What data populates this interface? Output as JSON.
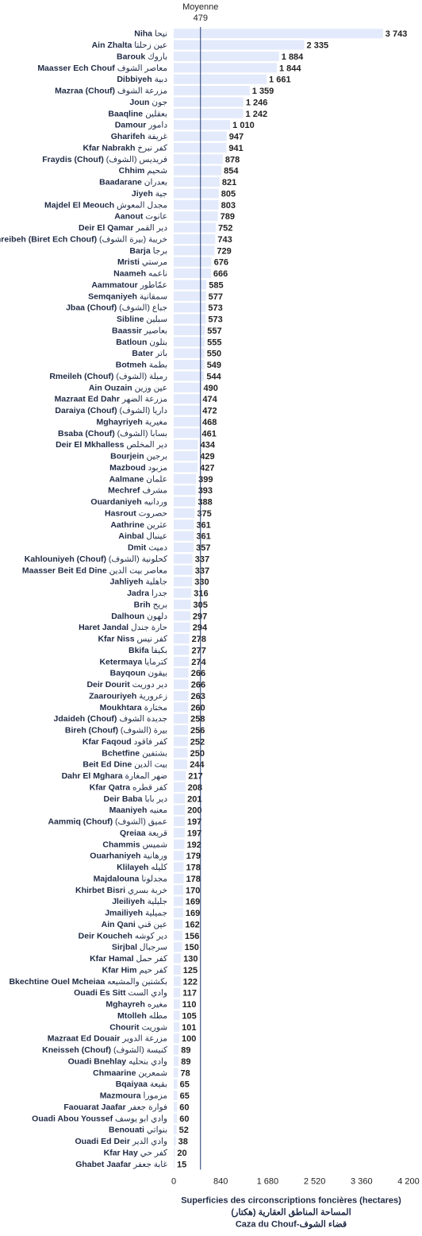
{
  "chart_data": {
    "type": "bar",
    "orientation": "horizontal",
    "bar_color": "#e3eafb",
    "average_line_color": "#1f3a73",
    "average": {
      "label": "Moyenne",
      "value": 479
    },
    "x_ticks": [
      0,
      840,
      1680,
      2520,
      3360,
      4200
    ],
    "x_tick_labels": [
      "0",
      "840",
      "1 680",
      "2 520",
      "3 360",
      "4 200"
    ],
    "xlim": [
      0,
      4200
    ],
    "title_lines": [
      "Superficies des circonscriptions foncières (hectares)",
      "المساحة المناطق العقارية (هكتار)",
      "Caza du Chouf-قضاء الشوف"
    ],
    "categories": [
      {
        "fr": "Niha",
        "ar": "نيحا",
        "value": 3743,
        "value_label": "3 743"
      },
      {
        "fr": "Ain Zhalta",
        "ar": "عين زحلتا",
        "value": 2335,
        "value_label": "2 335"
      },
      {
        "fr": "Barouk",
        "ar": "باروك",
        "value": 1884,
        "value_label": "1 884"
      },
      {
        "fr": "Maasser Ech Chouf",
        "ar": "معاصر الشوف",
        "value": 1844,
        "value_label": "1 844"
      },
      {
        "fr": "Dibbiyeh",
        "ar": "دبية",
        "value": 1661,
        "value_label": "1 661"
      },
      {
        "fr": "Mazraa (Chouf)",
        "ar": "مزرعة الشوف",
        "value": 1359,
        "value_label": "1 359"
      },
      {
        "fr": "Joun",
        "ar": "جون",
        "value": 1246,
        "value_label": "1 246"
      },
      {
        "fr": "Baaqline",
        "ar": "بعقلين",
        "value": 1242,
        "value_label": "1 242"
      },
      {
        "fr": "Damour",
        "ar": "دامور",
        "value": 1010,
        "value_label": "1 010"
      },
      {
        "fr": "Gharifeh",
        "ar": "غريفة",
        "value": 947,
        "value_label": "947"
      },
      {
        "fr": "Kfar Nabrakh",
        "ar": "كفر نبرخ",
        "value": 941,
        "value_label": "941"
      },
      {
        "fr": "Fraydis (Chouf)",
        "ar": "فريديس (الشوف)",
        "value": 878,
        "value_label": "878"
      },
      {
        "fr": "Chhim",
        "ar": "شحيم",
        "value": 854,
        "value_label": "854"
      },
      {
        "fr": "Baadarane",
        "ar": "بعدران",
        "value": 821,
        "value_label": "821"
      },
      {
        "fr": "Jiyeh",
        "ar": "جية",
        "value": 805,
        "value_label": "805"
      },
      {
        "fr": "Majdel El Meouch",
        "ar": "مجدل المعوش",
        "value": 803,
        "value_label": "803"
      },
      {
        "fr": "Aanout",
        "ar": "عانوت",
        "value": 789,
        "value_label": "789"
      },
      {
        "fr": "Deir El Qamar",
        "ar": "دير القمر",
        "value": 752,
        "value_label": "752"
      },
      {
        "fr": "Khreibeh (Biret Ech Chouf)",
        "ar": "خريبة (بيرة الشوف)",
        "value": 743,
        "value_label": "743"
      },
      {
        "fr": "Barja",
        "ar": "برجا",
        "value": 729,
        "value_label": "729"
      },
      {
        "fr": "Mristi",
        "ar": "مرستي",
        "value": 676,
        "value_label": "676"
      },
      {
        "fr": "Naameh",
        "ar": "ناعمه",
        "value": 666,
        "value_label": "666"
      },
      {
        "fr": "Aammatour",
        "ar": "عمّاطور",
        "value": 585,
        "value_label": "585"
      },
      {
        "fr": "Semqaniyeh",
        "ar": "سمقانية",
        "value": 577,
        "value_label": "577"
      },
      {
        "fr": "Jbaa (Chouf)",
        "ar": "جباع (الشوف)",
        "value": 573,
        "value_label": "573"
      },
      {
        "fr": "Sibline",
        "ar": "سبلين",
        "value": 573,
        "value_label": "573"
      },
      {
        "fr": "Baassir",
        "ar": "بعاصير",
        "value": 557,
        "value_label": "557"
      },
      {
        "fr": "Batloun",
        "ar": "بتلون",
        "value": 555,
        "value_label": "555"
      },
      {
        "fr": "Bater",
        "ar": "باتر",
        "value": 550,
        "value_label": "550"
      },
      {
        "fr": "Botmeh",
        "ar": "بطمة",
        "value": 549,
        "value_label": "549"
      },
      {
        "fr": "Rmeileh (Chouf)",
        "ar": "رميلة (الشوف)",
        "value": 544,
        "value_label": "544"
      },
      {
        "fr": "Ain Ouzain",
        "ar": "عين وزين",
        "value": 490,
        "value_label": "490"
      },
      {
        "fr": "Mazraat Ed Dahr",
        "ar": "مزرعة الضهر",
        "value": 474,
        "value_label": "474"
      },
      {
        "fr": "Daraiya (Chouf)",
        "ar": "داريا (الشوف)",
        "value": 472,
        "value_label": "472"
      },
      {
        "fr": "Mghayriyeh",
        "ar": "مغيرية",
        "value": 468,
        "value_label": "468"
      },
      {
        "fr": "Bsaba (Chouf)",
        "ar": "بسابا (الشوف)",
        "value": 461,
        "value_label": "461"
      },
      {
        "fr": "Deir El Mkhalless",
        "ar": "دير المخلص",
        "value": 434,
        "value_label": "434"
      },
      {
        "fr": "Bourjein",
        "ar": "برجين",
        "value": 429,
        "value_label": "429"
      },
      {
        "fr": "Mazboud",
        "ar": "مزبود",
        "value": 427,
        "value_label": "427"
      },
      {
        "fr": "Aalmane",
        "ar": "علمان",
        "value": 399,
        "value_label": "399"
      },
      {
        "fr": "Mechref",
        "ar": "مشرف",
        "value": 393,
        "value_label": "393"
      },
      {
        "fr": "Ouardaniyeh",
        "ar": "وردانيه",
        "value": 388,
        "value_label": "388"
      },
      {
        "fr": "Hasrout",
        "ar": "حصروت",
        "value": 375,
        "value_label": "375"
      },
      {
        "fr": "Aathrine",
        "ar": "عثرين",
        "value": 361,
        "value_label": "361"
      },
      {
        "fr": "Ainbal",
        "ar": "عينبال",
        "value": 361,
        "value_label": "361"
      },
      {
        "fr": "Dmit",
        "ar": "دميت",
        "value": 357,
        "value_label": "357"
      },
      {
        "fr": "Kahlouniyeh (Chouf)",
        "ar": "كحلونية (الشوف)",
        "value": 337,
        "value_label": "337"
      },
      {
        "fr": "Maasser Beit Ed Dine",
        "ar": "معاصر بيت الدين",
        "value": 337,
        "value_label": "337"
      },
      {
        "fr": "Jahliyeh",
        "ar": "جاهلية",
        "value": 330,
        "value_label": "330"
      },
      {
        "fr": "Jadra",
        "ar": "جدرا",
        "value": 316,
        "value_label": "316"
      },
      {
        "fr": "Brih",
        "ar": "بريح",
        "value": 305,
        "value_label": "305"
      },
      {
        "fr": "Dalhoun",
        "ar": "دلهون",
        "value": 297,
        "value_label": "297"
      },
      {
        "fr": "Haret Jandal",
        "ar": "حارة جندل",
        "value": 294,
        "value_label": "294"
      },
      {
        "fr": "Kfar Niss",
        "ar": "كفر نيس",
        "value": 278,
        "value_label": "278"
      },
      {
        "fr": "Bkifa",
        "ar": "بكيفا",
        "value": 277,
        "value_label": "277"
      },
      {
        "fr": "Ketermaya",
        "ar": "كترمايا",
        "value": 274,
        "value_label": "274"
      },
      {
        "fr": "Bayqoun",
        "ar": "بيقون",
        "value": 266,
        "value_label": "266"
      },
      {
        "fr": "Deir Dourit",
        "ar": "دير دوريت",
        "value": 266,
        "value_label": "266"
      },
      {
        "fr": "Zaarouriyeh",
        "ar": "زعرورية",
        "value": 263,
        "value_label": "263"
      },
      {
        "fr": "Moukhtara",
        "ar": "مختارة",
        "value": 260,
        "value_label": "260"
      },
      {
        "fr": "Jdaideh (Chouf)",
        "ar": "جديدة الشوف",
        "value": 258,
        "value_label": "258"
      },
      {
        "fr": "Bireh (Chouf)",
        "ar": "بيرة (الشوف)",
        "value": 256,
        "value_label": "256"
      },
      {
        "fr": "Kfar Faqoud",
        "ar": "كفر فاقود",
        "value": 252,
        "value_label": "252"
      },
      {
        "fr": "Bchetfine",
        "ar": "بشتفين",
        "value": 250,
        "value_label": "250"
      },
      {
        "fr": "Beit Ed Dine",
        "ar": "بيت الدين",
        "value": 244,
        "value_label": "244"
      },
      {
        "fr": "Dahr El Mghara",
        "ar": "ضهر المغارة",
        "value": 217,
        "value_label": "217"
      },
      {
        "fr": "Kfar Qatra",
        "ar": "كفر قطره",
        "value": 208,
        "value_label": "208"
      },
      {
        "fr": "Deir Baba",
        "ar": "دير بابا",
        "value": 201,
        "value_label": "201"
      },
      {
        "fr": "Maaniyeh",
        "ar": "معنيه",
        "value": 200,
        "value_label": "200"
      },
      {
        "fr": "Aammiq (Chouf)",
        "ar": "عميق (الشوف)",
        "value": 197,
        "value_label": "197"
      },
      {
        "fr": "Qreiaa",
        "ar": "قريعة",
        "value": 197,
        "value_label": "197"
      },
      {
        "fr": "Chammis",
        "ar": "شميس",
        "value": 192,
        "value_label": "192"
      },
      {
        "fr": "Ouarhaniyeh",
        "ar": "ورهانية",
        "value": 179,
        "value_label": "179"
      },
      {
        "fr": "Klilayeh",
        "ar": "كليله",
        "value": 178,
        "value_label": "178"
      },
      {
        "fr": "Majdalouna",
        "ar": "مجدلونا",
        "value": 178,
        "value_label": "178"
      },
      {
        "fr": "Khirbet Bisri",
        "ar": "خربة بسري",
        "value": 170,
        "value_label": "170"
      },
      {
        "fr": "Jleiliyeh",
        "ar": "جليلية",
        "value": 169,
        "value_label": "169"
      },
      {
        "fr": "Jmailiyeh",
        "ar": "جميلية",
        "value": 169,
        "value_label": "169"
      },
      {
        "fr": "Ain Qani",
        "ar": "عين قني",
        "value": 162,
        "value_label": "162"
      },
      {
        "fr": "Deir Koucheh",
        "ar": "دير كوشه",
        "value": 156,
        "value_label": "156"
      },
      {
        "fr": "Sirjbal",
        "ar": "سرجبال",
        "value": 150,
        "value_label": "150"
      },
      {
        "fr": "Kfar Hamal",
        "ar": "كفر حمل",
        "value": 130,
        "value_label": "130"
      },
      {
        "fr": "Kfar Him",
        "ar": "كفر حيم",
        "value": 125,
        "value_label": "125"
      },
      {
        "fr": "Bkechtine Ouel Mcheiaa",
        "ar": "بكشتين والمشيعه",
        "value": 122,
        "value_label": "122"
      },
      {
        "fr": "Ouadi Es Sitt",
        "ar": "وادي الست",
        "value": 117,
        "value_label": "117"
      },
      {
        "fr": "Mghayreh",
        "ar": "مغيره",
        "value": 110,
        "value_label": "110"
      },
      {
        "fr": "Mtolleh",
        "ar": "مطله",
        "value": 105,
        "value_label": "105"
      },
      {
        "fr": "Chourit",
        "ar": "شوريت",
        "value": 101,
        "value_label": "101"
      },
      {
        "fr": "Mazraat Ed Douair",
        "ar": "مزرعة الدوير",
        "value": 100,
        "value_label": "100"
      },
      {
        "fr": "Kneisseh (Chouf)",
        "ar": "كنيسة (الشوف)",
        "value": 89,
        "value_label": "89"
      },
      {
        "fr": "Ouadi Bnehlay",
        "ar": "وادي بنحليه",
        "value": 89,
        "value_label": "89"
      },
      {
        "fr": "Chmaarine",
        "ar": "شمعرين",
        "value": 78,
        "value_label": "78"
      },
      {
        "fr": "Bqaiyaa",
        "ar": "بقيعة",
        "value": 65,
        "value_label": "65"
      },
      {
        "fr": "Mazmoura",
        "ar": "مزمورا",
        "value": 65,
        "value_label": "65"
      },
      {
        "fr": "Faouarat Jaafar",
        "ar": "فوارة جعفر",
        "value": 60,
        "value_label": "60"
      },
      {
        "fr": "Ouadi Abou Youssef",
        "ar": "وادي ابو يوسف",
        "value": 60,
        "value_label": "60"
      },
      {
        "fr": "Benouati",
        "ar": "بنواتي",
        "value": 52,
        "value_label": "52"
      },
      {
        "fr": "Ouadi Ed Deir",
        "ar": "وادي الدير",
        "value": 38,
        "value_label": "38"
      },
      {
        "fr": "Kfar Hay",
        "ar": "كفر حي",
        "value": 20,
        "value_label": "20"
      },
      {
        "fr": "Ghabet Jaafar",
        "ar": "غابة جعفر",
        "value": 15,
        "value_label": "15"
      }
    ]
  }
}
